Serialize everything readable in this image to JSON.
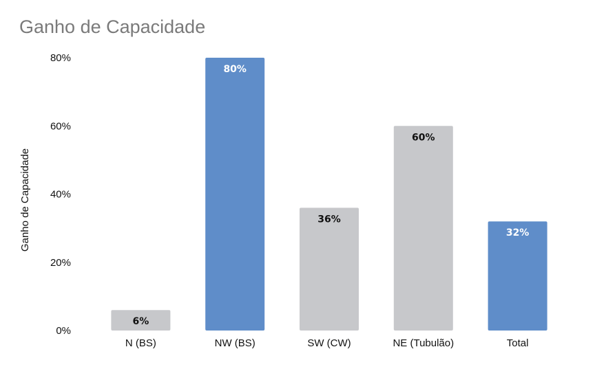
{
  "chart_data": {
    "type": "bar",
    "title": "Ganho de Capacidade",
    "xlabel": "",
    "ylabel": "Ganho de Capacidade",
    "categories": [
      "N (BS)",
      "NW (BS)",
      "SW (CW)",
      "NE (Tubulão)",
      "Total"
    ],
    "values": [
      6,
      80,
      36,
      60,
      32
    ],
    "data_labels": [
      "6%",
      "80%",
      "36%",
      "60%",
      "32%"
    ],
    "bar_colors": [
      "#c7c8cb",
      "#5f8dc9",
      "#c7c8cb",
      "#c7c8cb",
      "#5f8dc9"
    ],
    "label_colors": [
      "#111111",
      "#ffffff",
      "#111111",
      "#111111",
      "#ffffff"
    ],
    "ylim": [
      0,
      80
    ],
    "yticks": [
      0,
      20,
      40,
      60,
      80
    ],
    "ytick_labels": [
      "0%",
      "20%",
      "40%",
      "60%",
      "80%"
    ],
    "grid": false,
    "legend": "none"
  }
}
